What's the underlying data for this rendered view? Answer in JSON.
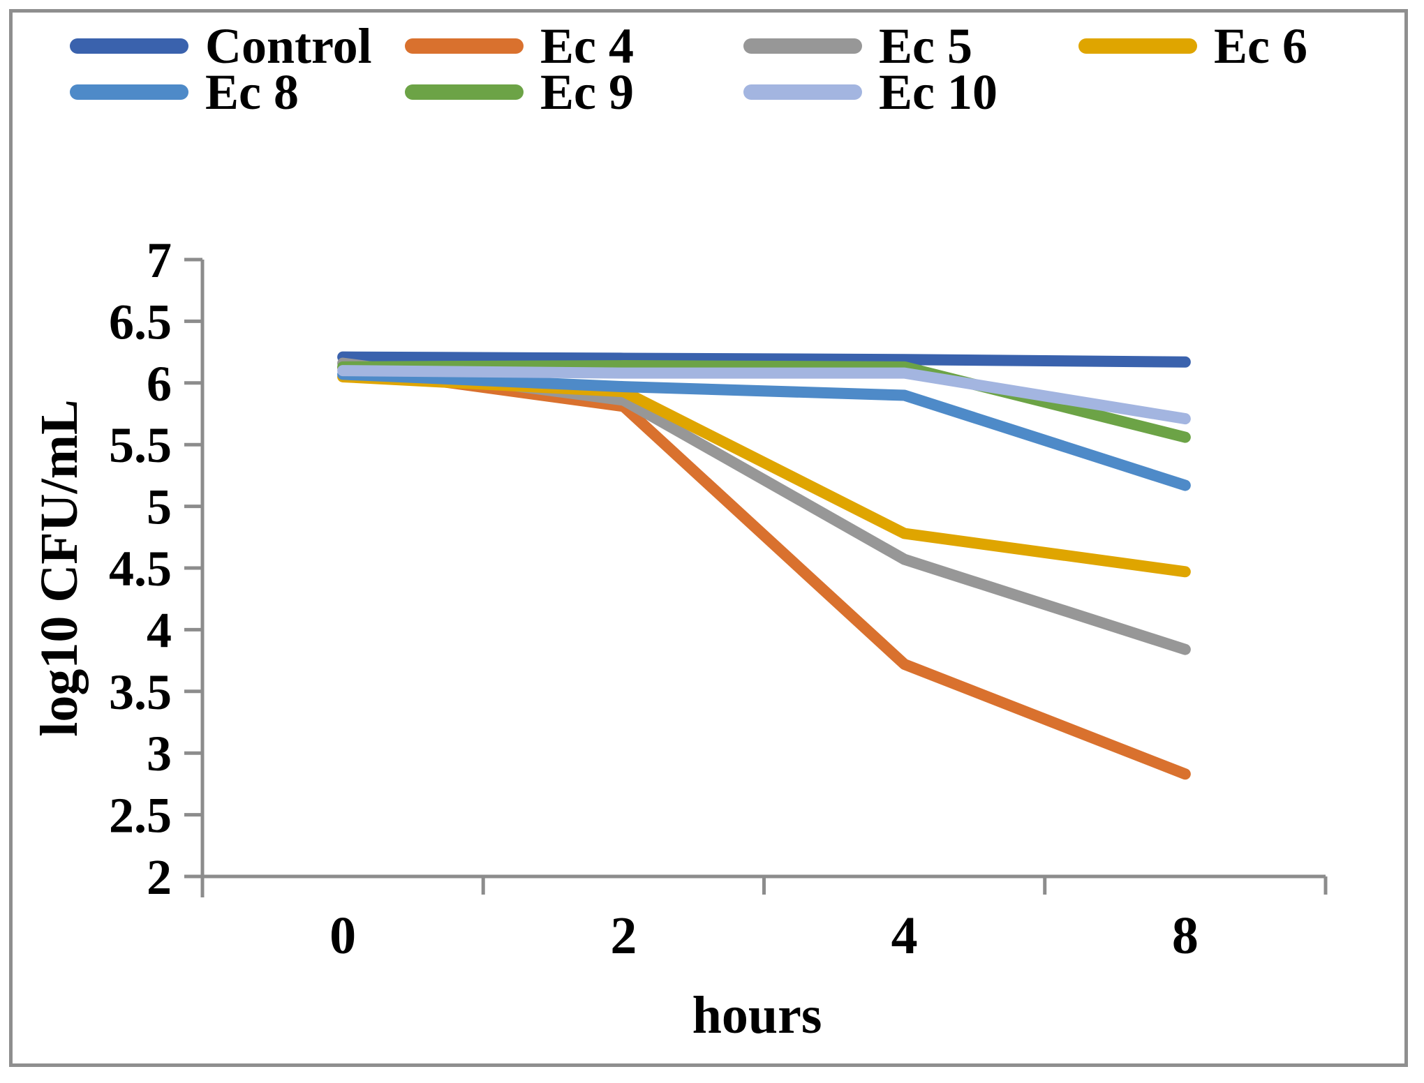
{
  "figure": {
    "background": "#ffffff",
    "border_color": "#8f8f8f"
  },
  "chart_data": {
    "type": "line",
    "title": "",
    "xlabel": "hours",
    "ylabel": "log10 CFU/mL",
    "categories": [
      "0",
      "2",
      "4",
      "8"
    ],
    "x_values_hours": [
      0,
      2,
      4,
      8
    ],
    "ylim": [
      2,
      7
    ],
    "ytick_step": 0.5,
    "y_tick_labels": [
      "7",
      "6.5",
      "6",
      "5.5",
      "5",
      "4.5",
      "4",
      "3.5",
      "3",
      "2.5",
      "2"
    ],
    "grid": false,
    "legend_position": "top",
    "axis_color": "#8c8c8c",
    "series": [
      {
        "name": "Control",
        "color": "#3a62ad",
        "values": [
          6.21,
          6.2,
          6.19,
          6.17
        ]
      },
      {
        "name": "Ec 4",
        "color": "#d9712e",
        "values": [
          6.12,
          5.81,
          3.72,
          2.83
        ]
      },
      {
        "name": "Ec 5",
        "color": "#979797",
        "values": [
          6.16,
          5.86,
          4.57,
          3.84
        ]
      },
      {
        "name": "Ec 6",
        "color": "#dfa500",
        "values": [
          6.05,
          5.93,
          4.78,
          4.47
        ]
      },
      {
        "name": "Ec 8",
        "color": "#4e8ac8",
        "values": [
          6.07,
          5.97,
          5.9,
          5.17
        ]
      },
      {
        "name": "Ec 9",
        "color": "#6ca346",
        "values": [
          6.13,
          6.14,
          6.13,
          5.56
        ]
      },
      {
        "name": "Ec 10",
        "color": "#a3b5e0",
        "values": [
          6.1,
          6.08,
          6.08,
          5.71
        ]
      }
    ]
  }
}
